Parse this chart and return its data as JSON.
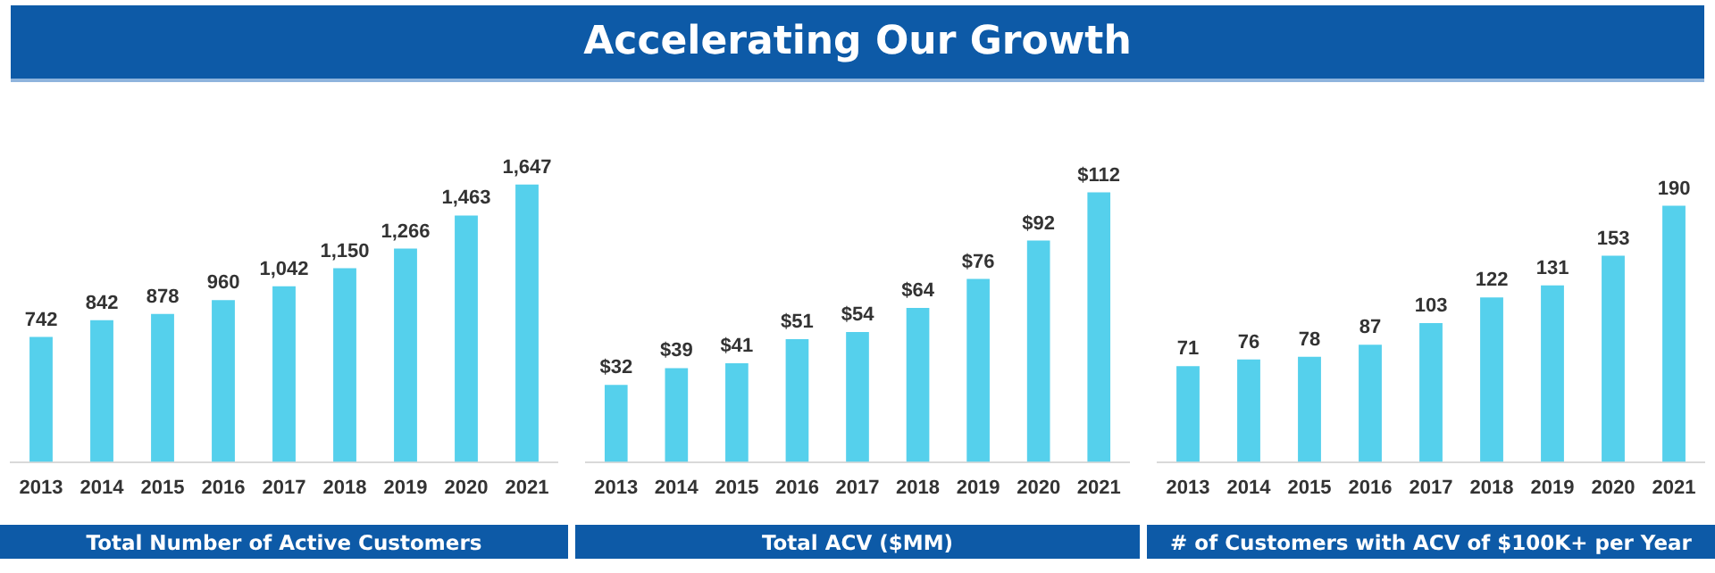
{
  "chart_data": [
    {
      "type": "other",
      "title": "Accelerating Our Growth"
    },
    {
      "type": "bar",
      "xlabel": "Total Number of Active Customers",
      "categories": [
        "2013",
        "2014",
        "2015",
        "2016",
        "2017",
        "2018",
        "2019",
        "2020",
        "2021"
      ],
      "values": [
        742,
        842,
        878,
        960,
        1042,
        1150,
        1266,
        1463,
        1647
      ],
      "value_labels": [
        "742",
        "842",
        "878",
        "960",
        "1,042",
        "1,150",
        "1,266",
        "1,463",
        "1,647"
      ],
      "color": "#55d0ec",
      "grid": false,
      "legend": false,
      "tick_labels": "x"
    },
    {
      "type": "bar",
      "xlabel": "Total ACV ($MM)",
      "categories": [
        "2013",
        "2014",
        "2015",
        "2016",
        "2017",
        "2018",
        "2019",
        "2020",
        "2021"
      ],
      "values": [
        32,
        39,
        41,
        51,
        54,
        64,
        76,
        92,
        112
      ],
      "value_labels": [
        "$32",
        "$39",
        "$41",
        "$51",
        "$54",
        "$64",
        "$76",
        "$92",
        "$112"
      ],
      "color": "#55d0ec",
      "grid": false,
      "legend": false,
      "tick_labels": "x"
    },
    {
      "type": "bar",
      "xlabel": "# of Customers with ACV of $100K+ per Year",
      "categories": [
        "2013",
        "2014",
        "2015",
        "2016",
        "2017",
        "2018",
        "2019",
        "2020",
        "2021"
      ],
      "values": [
        71,
        76,
        78,
        87,
        103,
        122,
        131,
        153,
        190
      ],
      "value_labels": [
        "71",
        "76",
        "78",
        "87",
        "103",
        "122",
        "131",
        "153",
        "190"
      ],
      "color": "#55d0ec",
      "grid": false,
      "legend": false,
      "tick_labels": "x"
    }
  ]
}
